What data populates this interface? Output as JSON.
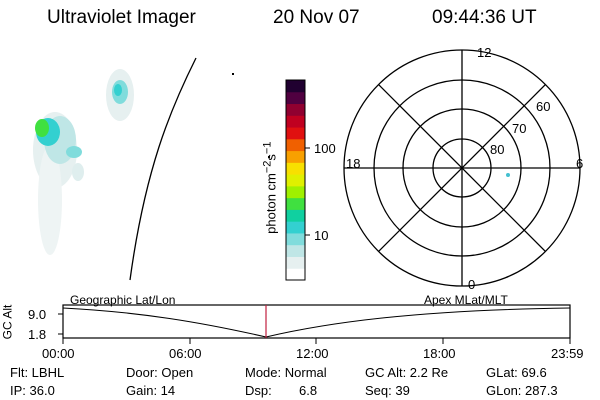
{
  "header": {
    "instrument": "Ultraviolet Imager",
    "date": "20 Nov 07",
    "time": "09:44:36 UT"
  },
  "colorbar": {
    "unit_label": "photon cm",
    "unit_exp1": "−2",
    "unit_mid": "s",
    "unit_exp2": "−1",
    "ticks": [
      "100",
      "10"
    ],
    "colors": [
      "#ffffff",
      "#e6f0f0",
      "#bfe6e6",
      "#80dcdc",
      "#33d0d0",
      "#10d0a0",
      "#40e040",
      "#a0f000",
      "#e0f000",
      "#f8e000",
      "#f8a000",
      "#f06000",
      "#e01010",
      "#c00020",
      "#900030",
      "#500040",
      "#200030"
    ]
  },
  "polar": {
    "mlt_labels": {
      "top": "12",
      "left": "18",
      "right": "6",
      "bottom": "0"
    },
    "lat_labels": [
      "60",
      "70",
      "80"
    ],
    "point_color": "#44c0d0"
  },
  "orbit": {
    "left_label": "Geographic Lat/Lon",
    "right_label": "Apex  MLat/MLT",
    "axis_label": "GC Alt",
    "y_ticks": [
      "9.0",
      "1.8"
    ],
    "x_ticks": [
      "00:00",
      "06:00",
      "12:00",
      "18:00",
      "23:59"
    ],
    "marker_color": "#c02040"
  },
  "info": {
    "filter": "Flt: LBHL",
    "ip": "IP: 36.0",
    "door": "Door: Open",
    "gain": "Gain: 14",
    "mode": "Mode: Normal",
    "dsp_label": "Dsp:",
    "dsp_value": "6.8",
    "gc_alt": "GC Alt: 2.2 Re",
    "seq": "Seq: 39",
    "glat": "GLat:  69.6",
    "glon": "GLon: 287.3"
  }
}
